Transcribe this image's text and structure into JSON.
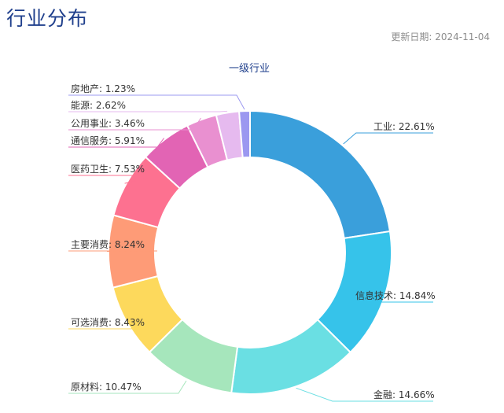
{
  "header": {
    "title": "行业分布",
    "update_date": "更新日期: 2024-11-04"
  },
  "chart_data": {
    "type": "pie",
    "donut": true,
    "title": "一级行业",
    "legend": "none",
    "slices": [
      {
        "label": "工业",
        "value": 22.61,
        "color": "#3a9fdb"
      },
      {
        "label": "信息技术",
        "value": 14.84,
        "color": "#36c3ea"
      },
      {
        "label": "金融",
        "value": 14.66,
        "color": "#6adfe3"
      },
      {
        "label": "原材料",
        "value": 10.47,
        "color": "#a6e6bc"
      },
      {
        "label": "可选消费",
        "value": 8.43,
        "color": "#fdd95c"
      },
      {
        "label": "主要消费",
        "value": 8.24,
        "color": "#fe9b77"
      },
      {
        "label": "医药卫生",
        "value": 7.53,
        "color": "#fd7190"
      },
      {
        "label": "通信服务",
        "value": 5.91,
        "color": "#e264b4"
      },
      {
        "label": "公用事业",
        "value": 3.46,
        "color": "#e990d0"
      },
      {
        "label": "能源",
        "value": 2.62,
        "color": "#e6baef"
      },
      {
        "label": "房地产",
        "value": 1.23,
        "color": "#9b98f0"
      }
    ]
  }
}
